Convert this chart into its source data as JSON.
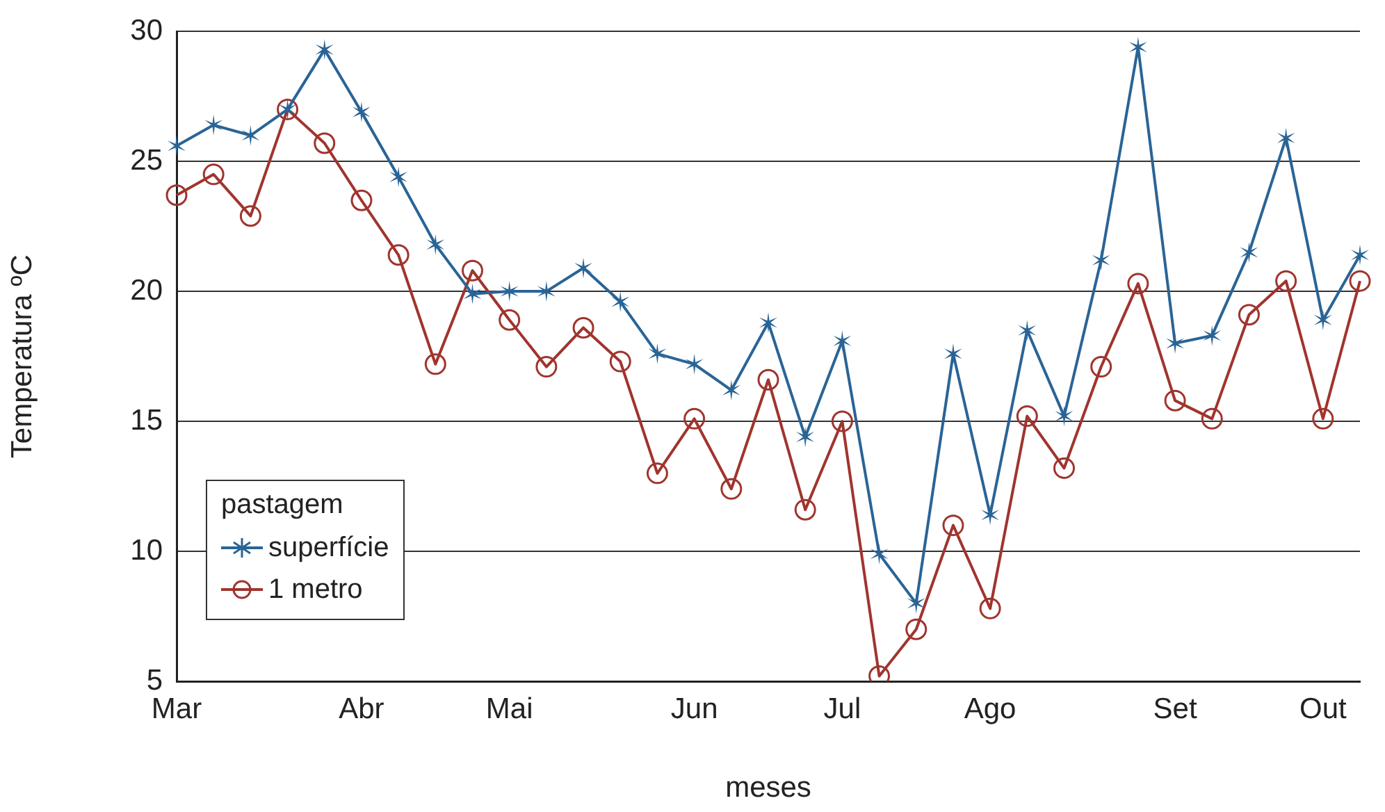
{
  "chart_data": {
    "type": "line",
    "xlabel": "meses",
    "ylabel": "Temperatura ºC",
    "legend_title": "pastagem",
    "legend": "bottom left",
    "grid": "y",
    "line_style": "solid",
    "categories": [
      "Mar",
      null,
      null,
      null,
      null,
      "Abr",
      null,
      null,
      null,
      "Mai",
      null,
      null,
      null,
      null,
      "Jun",
      null,
      null,
      null,
      "Jul",
      null,
      null,
      null,
      "Ago",
      null,
      null,
      null,
      null,
      "Set",
      null,
      null,
      null,
      "Out",
      null
    ],
    "ylim": [
      5,
      30
    ],
    "yticks": [
      5,
      10,
      15,
      20,
      25,
      30
    ],
    "series": [
      {
        "name": "superfície",
        "color": "#2a6496",
        "marker": "cross",
        "values": [
          25.6,
          26.4,
          26.0,
          27.0,
          29.3,
          26.9,
          24.4,
          21.8,
          19.9,
          20.0,
          20.0,
          20.9,
          19.6,
          17.6,
          17.2,
          16.2,
          18.8,
          14.4,
          18.1,
          9.9,
          8.0,
          17.6,
          11.4,
          18.5,
          15.2,
          21.2,
          29.4,
          18.0,
          18.3,
          21.5,
          25.9,
          18.9,
          21.4
        ]
      },
      {
        "name": "1 metro",
        "color": "#a0342e",
        "marker": "circle",
        "values": [
          23.7,
          24.5,
          22.9,
          27.0,
          25.7,
          23.5,
          21.4,
          17.2,
          20.8,
          18.9,
          17.1,
          18.6,
          17.3,
          13.0,
          15.1,
          12.4,
          16.6,
          11.6,
          15.0,
          5.2,
          7.0,
          11.0,
          7.8,
          15.2,
          13.2,
          17.1,
          20.3,
          15.8,
          15.1,
          19.1,
          20.4,
          15.1,
          20.4
        ]
      }
    ]
  }
}
